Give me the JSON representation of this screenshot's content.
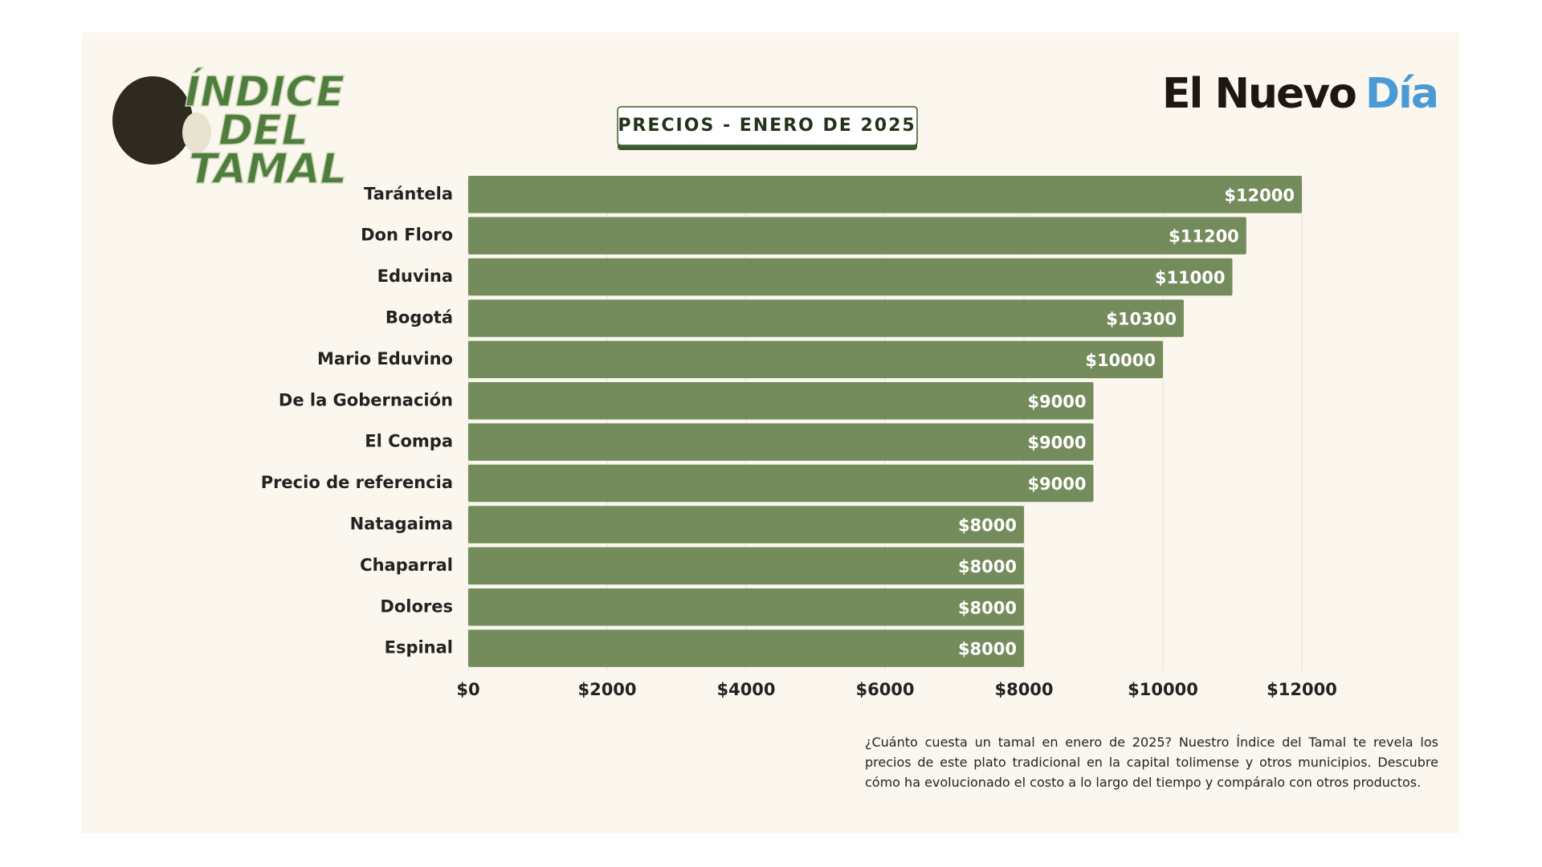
{
  "header": {
    "logo_lines": [
      "ÍNDICE",
      "DEL",
      "TAMAL"
    ],
    "brand": "El Nuevo",
    "brand_highlight": "Día"
  },
  "chart_data": {
    "type": "bar",
    "orientation": "horizontal",
    "title": "PRECIOS - ENERO DE 2025",
    "categories": [
      "Tarántela",
      "Don Floro",
      "Eduvina",
      "Bogotá",
      "Mario Eduvino",
      "De la Gobernación",
      "El Compa",
      "Precio de referencia",
      "Natagaima",
      "Chaparral",
      "Dolores",
      "Espinal"
    ],
    "values": [
      12000,
      11200,
      11000,
      10300,
      10000,
      9000,
      9000,
      9000,
      8000,
      8000,
      8000,
      8000
    ],
    "value_labels": [
      "$12000",
      "$11200",
      "$11000",
      "$10300",
      "$10000",
      "$9000",
      "$9000",
      "$9000",
      "$8000",
      "$8000",
      "$8000",
      "$8000"
    ],
    "color": "#748c5c",
    "xlim": [
      0,
      12000
    ],
    "xticks": [
      {
        "value": 0,
        "label": "$0"
      },
      {
        "value": 2000,
        "label": "$2000"
      },
      {
        "value": 4000,
        "label": "$4000"
      },
      {
        "value": 6000,
        "label": "$6000"
      },
      {
        "value": 8000,
        "label": "$8000"
      },
      {
        "value": 10000,
        "label": "$10000"
      },
      {
        "value": 12000,
        "label": "$12000"
      }
    ],
    "grid": true
  },
  "footer": {
    "description": "¿Cuánto cuesta un tamal en enero de 2025? Nuestro Índice del Tamal te revela los precios de este plato tradicional en la capital tolimense y otros municipios. Descubre cómo ha evolucionado el costo a lo largo del tiempo y compáralo con otros productos."
  }
}
